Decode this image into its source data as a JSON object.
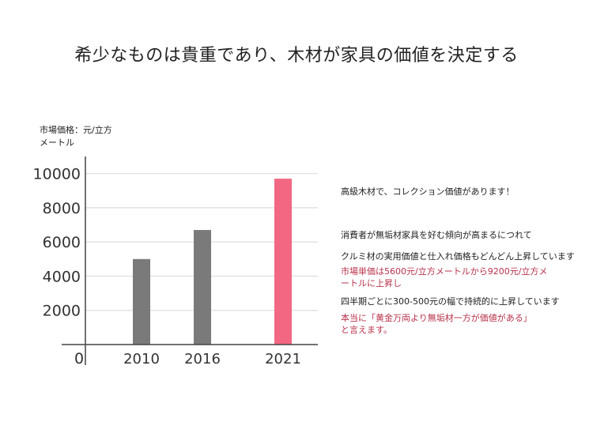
{
  "title": "希少なものは貴重であり、木材が家具の価値を決定する",
  "unit_label": [
    "市場価格：元/立方",
    "メートル"
  ],
  "notes": [
    {
      "text": "高級木材で、コレクション価値があります！",
      "accent": false
    },
    {
      "text": "消費者が無垢材家具を好む傾向が高まるにつれて",
      "accent": false
    },
    {
      "text": "クルミ材の実用価値と仕入れ価格もどんどん上昇しています",
      "accent": false
    },
    {
      "text": "市場単価は5600元/立方メートルから9200元/立方メートルに上昇し",
      "accent": true
    },
    {
      "text": "四半期ごとに300-500元の幅で持続的に上昇しています",
      "accent": false
    },
    {
      "text": "本当に「黄金万両より無垢材一方が価値がある」と言えます。",
      "accent": true
    }
  ],
  "chart_data": {
    "type": "bar",
    "categories": [
      "2010",
      "2016",
      "2021"
    ],
    "values": [
      5000,
      6700,
      9700
    ],
    "ylim": [
      0,
      11000
    ],
    "yticks": [
      "0",
      "2000",
      "4000",
      "6000",
      "8000",
      "10000"
    ],
    "colors": [
      "#7a7a7a",
      "#7a7a7a",
      "#f26782"
    ],
    "grid": true,
    "legend": "none"
  }
}
